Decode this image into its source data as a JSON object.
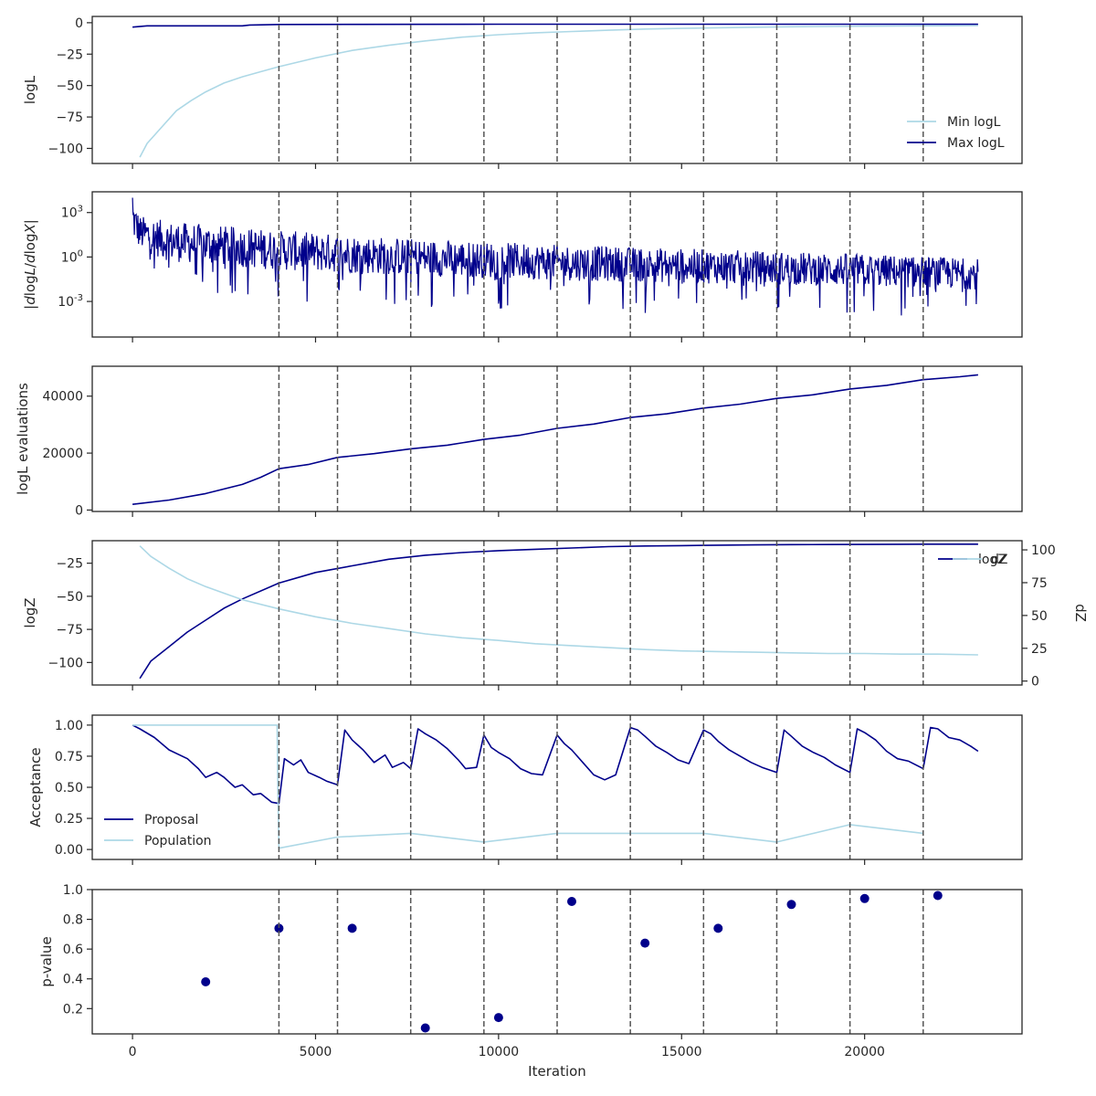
{
  "colors": {
    "dark": "#00008b",
    "light": "#add8e6",
    "vline": "#555555",
    "axis": "#262626"
  },
  "shared": {
    "xlabel": "Iteration",
    "xlim": [
      -1100,
      24300
    ],
    "x_ticks": [
      0,
      5000,
      10000,
      15000,
      20000
    ],
    "x_tick_labels": [
      "0",
      "5000",
      "10000",
      "15000",
      "20000"
    ],
    "vertical_lines": [
      4000,
      5600,
      7600,
      9600,
      11600,
      13600,
      15600,
      17600,
      19600,
      21600
    ]
  },
  "chart_data": [
    {
      "id": "logl",
      "type": "line",
      "ylabel": "logL",
      "ylim": [
        -112,
        5
      ],
      "y_ticks": [
        0,
        -25,
        -50,
        -75,
        -100
      ],
      "y_tick_labels": [
        "0",
        "−25",
        "−50",
        "−75",
        "−100"
      ],
      "legend": {
        "placement": "lower-right",
        "entries": [
          "Min logL",
          "Max logL"
        ]
      },
      "series": [
        {
          "name": "Min logL",
          "color": "light",
          "x": [
            200,
            400,
            800,
            1200,
            1600,
            2000,
            2500,
            3000,
            3500,
            4000,
            5000,
            6000,
            7000,
            8000,
            9000,
            10000,
            11000,
            12000,
            13000,
            14000,
            15000,
            16000,
            17000,
            18000,
            19000,
            20000,
            21000,
            22000,
            23100
          ],
          "y": [
            -107,
            -96,
            -83,
            -70,
            -62,
            -55,
            -48,
            -43,
            -39,
            -35,
            -28,
            -22,
            -18,
            -14.5,
            -11.5,
            -9.5,
            -8,
            -7,
            -6,
            -5,
            -4.5,
            -4,
            -3.6,
            -3.2,
            -3,
            -2.8,
            -2.6,
            -2.5,
            -2.3
          ]
        },
        {
          "name": "Max logL",
          "color": "dark",
          "x": [
            0,
            400,
            1000,
            2000,
            3000,
            3200,
            4000,
            6000,
            10000,
            15000,
            20000,
            23100
          ],
          "y": [
            -3.5,
            -2.5,
            -2.5,
            -2.5,
            -2.5,
            -1.8,
            -1.4,
            -1.3,
            -1.2,
            -1.2,
            -1.2,
            -1.2
          ]
        }
      ]
    },
    {
      "id": "dlogl",
      "type": "line",
      "yscale": "log",
      "ylabel": "|dlogL/dlogX|",
      "ylim_log10": [
        -5.4,
        4.4
      ],
      "y_ticks_log10": [
        3,
        0,
        -3
      ],
      "y_tick_labels": [
        "10^3",
        "10^0",
        "10^-3"
      ],
      "envelope": {
        "x": [
          0,
          200,
          1000,
          4000,
          8000,
          12000,
          16000,
          20000,
          23100
        ],
        "upper_log10": [
          4.0,
          2.8,
          2.4,
          1.8,
          1.2,
          0.8,
          0.5,
          0.2,
          -0.1
        ],
        "lower_log10": [
          1.2,
          0.5,
          -0.3,
          -0.9,
          -1.3,
          -1.6,
          -1.8,
          -2.0,
          -2.2
        ],
        "min_log10": [
          -0.5,
          -1.0,
          -2.0,
          -3.0,
          -3.5,
          -3.7,
          -3.9,
          -4.0,
          -4.1
        ]
      }
    },
    {
      "id": "evals",
      "type": "line",
      "ylabel": "logL evaluations",
      "ylim": [
        -500,
        50500
      ],
      "y_ticks": [
        0,
        20000,
        40000
      ],
      "y_tick_labels": [
        "0",
        "20000",
        "40000"
      ],
      "series": [
        {
          "name": "",
          "color": "dark",
          "x": [
            0,
            1000,
            2000,
            3000,
            3500,
            4000,
            4800,
            5600,
            6600,
            7600,
            8600,
            9600,
            10600,
            11600,
            12600,
            13600,
            14600,
            15600,
            16600,
            17600,
            18600,
            19600,
            20600,
            21600,
            22600,
            23100
          ],
          "y": [
            2000,
            3500,
            5800,
            9000,
            11500,
            14500,
            16000,
            18500,
            19800,
            21500,
            22800,
            24800,
            26300,
            28700,
            30200,
            32500,
            33800,
            35800,
            37200,
            39200,
            40500,
            42500,
            43800,
            45800,
            46800,
            47500
          ]
        }
      ]
    },
    {
      "id": "logz",
      "type": "line",
      "ylabel": "logZ",
      "ylabel_right": "dZ",
      "ylim": [
        -117,
        -8
      ],
      "y_ticks": [
        -25,
        -50,
        -75,
        -100
      ],
      "y_tick_labels": [
        "−25",
        "−50",
        "−75",
        "−100"
      ],
      "ylim_right": [
        -3,
        107
      ],
      "y_ticks_right": [
        0,
        25,
        50,
        75,
        100
      ],
      "y_tick_labels_right": [
        "0",
        "25",
        "50",
        "75",
        "100"
      ],
      "legend": {
        "placement": "upper-right",
        "entries": [
          "logZ",
          "dZ"
        ]
      },
      "series": [
        {
          "name": "logZ",
          "color": "dark",
          "axis": "left",
          "x": [
            200,
            500,
            1000,
            1500,
            2000,
            2500,
            3000,
            4000,
            5000,
            6000,
            7000,
            8000,
            9000,
            10000,
            11000,
            12000,
            13000,
            14000,
            15000,
            16000,
            17000,
            18000,
            19000,
            20000,
            21000,
            22000,
            23100
          ],
          "y": [
            -112,
            -99,
            -88,
            -77,
            -68,
            -59,
            -52,
            -40,
            -32,
            -27,
            -22,
            -19,
            -17,
            -15.5,
            -14.5,
            -13.5,
            -12.5,
            -12,
            -11.7,
            -11.4,
            -11.2,
            -11,
            -10.9,
            -10.8,
            -10.7,
            -10.6,
            -10.6
          ]
        },
        {
          "name": "dZ",
          "color": "light",
          "axis": "right",
          "x": [
            200,
            500,
            1000,
            1500,
            2000,
            2500,
            3000,
            4000,
            5000,
            6000,
            7000,
            8000,
            9000,
            10000,
            11000,
            12000,
            13000,
            14000,
            15000,
            16000,
            17000,
            18000,
            19000,
            20000,
            21000,
            22000,
            23100
          ],
          "y": [
            103,
            95,
            86,
            78,
            72,
            67,
            62,
            55,
            49,
            44,
            40,
            36,
            33,
            31,
            28.5,
            27,
            25.5,
            24,
            23,
            22.5,
            22,
            21.5,
            21,
            21,
            20.5,
            20.5,
            20
          ]
        }
      ]
    },
    {
      "id": "acceptance",
      "type": "line",
      "ylabel": "Acceptance",
      "ylim": [
        -0.08,
        1.08
      ],
      "y_ticks": [
        1.0,
        0.75,
        0.5,
        0.25,
        0.0
      ],
      "y_tick_labels": [
        "1.00",
        "0.75",
        "0.50",
        "0.25",
        "0.00"
      ],
      "legend": {
        "placement": "lower-left",
        "entries": [
          "Proposal",
          "Population"
        ]
      },
      "series": [
        {
          "name": "Proposal",
          "color": "dark",
          "x": [
            0,
            200,
            600,
            1000,
            1500,
            1800,
            2000,
            2300,
            2500,
            2800,
            3000,
            3300,
            3500,
            3800,
            4000,
            4150,
            4400,
            4600,
            4800,
            5100,
            5300,
            5600,
            5800,
            6000,
            6300,
            6600,
            6900,
            7100,
            7400,
            7600,
            7800,
            8000,
            8300,
            8600,
            8900,
            9100,
            9400,
            9600,
            9800,
            10000,
            10300,
            10600,
            10900,
            11200,
            11600,
            11800,
            12000,
            12300,
            12600,
            12900,
            13200,
            13600,
            13800,
            14000,
            14300,
            14600,
            14900,
            15200,
            15600,
            15800,
            16000,
            16300,
            16600,
            16900,
            17200,
            17600,
            17800,
            18000,
            18300,
            18600,
            18900,
            19200,
            19600,
            19800,
            20000,
            20300,
            20600,
            20900,
            21200,
            21600,
            21800,
            22000,
            22300,
            22600,
            22900,
            23100
          ],
          "y": [
            1.0,
            0.97,
            0.9,
            0.8,
            0.73,
            0.65,
            0.58,
            0.62,
            0.58,
            0.5,
            0.52,
            0.44,
            0.45,
            0.38,
            0.37,
            0.73,
            0.68,
            0.72,
            0.62,
            0.58,
            0.55,
            0.52,
            0.96,
            0.88,
            0.8,
            0.7,
            0.76,
            0.66,
            0.7,
            0.65,
            0.97,
            0.93,
            0.88,
            0.81,
            0.72,
            0.65,
            0.66,
            0.92,
            0.82,
            0.78,
            0.73,
            0.65,
            0.61,
            0.6,
            0.92,
            0.85,
            0.8,
            0.7,
            0.6,
            0.56,
            0.6,
            0.98,
            0.96,
            0.91,
            0.83,
            0.78,
            0.72,
            0.69,
            0.96,
            0.93,
            0.87,
            0.8,
            0.75,
            0.7,
            0.66,
            0.62,
            0.96,
            0.91,
            0.83,
            0.78,
            0.74,
            0.68,
            0.62,
            0.97,
            0.94,
            0.88,
            0.79,
            0.73,
            0.71,
            0.65,
            0.98,
            0.97,
            0.9,
            0.88,
            0.83,
            0.79
          ]
        },
        {
          "name": "Population",
          "color": "light",
          "x": [
            0,
            3950,
            3970,
            4000,
            5600,
            7600,
            9600,
            11600,
            13600,
            15600,
            17600,
            19600,
            21600
          ],
          "y": [
            1.0,
            1.0,
            0.5,
            0.01,
            0.1,
            0.13,
            0.06,
            0.13,
            0.13,
            0.13,
            0.06,
            0.2,
            0.13
          ]
        }
      ]
    },
    {
      "id": "pvalue",
      "type": "scatter",
      "ylabel": "p-value",
      "ylim": [
        0.03,
        1.0
      ],
      "y_ticks": [
        1.0,
        0.8,
        0.6,
        0.4,
        0.2
      ],
      "y_tick_labels": [
        "1.0",
        "0.8",
        "0.6",
        "0.4",
        "0.2"
      ],
      "points": {
        "color": "dark",
        "x": [
          2000,
          4000,
          6000,
          8000,
          10000,
          12000,
          14000,
          16000,
          18000,
          20000,
          22000
        ],
        "y": [
          0.38,
          0.74,
          0.74,
          0.07,
          0.14,
          0.92,
          0.64,
          0.74,
          0.9,
          0.94,
          0.96
        ]
      }
    }
  ]
}
